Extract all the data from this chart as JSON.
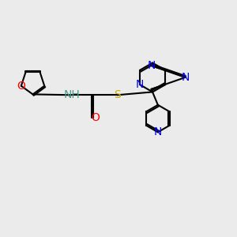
{
  "background_color": "#ebebeb",
  "bond_color": "#000000",
  "bond_width": 1.5,
  "figsize": [
    3.0,
    3.0
  ],
  "dpi": 100,
  "xlim": [
    0,
    10
  ],
  "ylim": [
    0,
    10
  ],
  "colors": {
    "O": "#ff0000",
    "N": "#0000ff",
    "S": "#ccaa00",
    "NH": "#4a9a8a",
    "C": "#000000"
  }
}
